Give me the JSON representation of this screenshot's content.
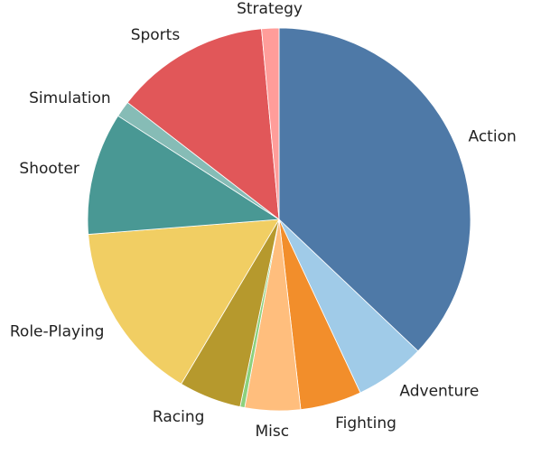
{
  "chart_data": {
    "type": "pie",
    "title": "",
    "start_angle_deg": 0,
    "direction": "clockwise",
    "slices": [
      {
        "label": "Action",
        "value": 38.0,
        "color": "#4e79a7"
      },
      {
        "label": "Adventure",
        "value": 6.1,
        "color": "#a0cbe8"
      },
      {
        "label": "Fighting",
        "value": 5.3,
        "color": "#f28e2b"
      },
      {
        "label": "Misc",
        "value": 4.8,
        "color": "#ffbe7d"
      },
      {
        "label": "",
        "value": 0.4,
        "color": "#8cd17d"
      },
      {
        "label": "Racing",
        "value": 5.4,
        "color": "#b6992d"
      },
      {
        "label": "Role-Playing",
        "value": 15.6,
        "color": "#f1ce63"
      },
      {
        "label": "Shooter",
        "value": 10.6,
        "color": "#499894"
      },
      {
        "label": "Simulation",
        "value": 1.4,
        "color": "#86bcb6"
      },
      {
        "label": "Sports",
        "value": 13.4,
        "color": "#e15759"
      },
      {
        "label": "Strategy",
        "value": 1.5,
        "color": "#ff9d9a"
      }
    ]
  }
}
